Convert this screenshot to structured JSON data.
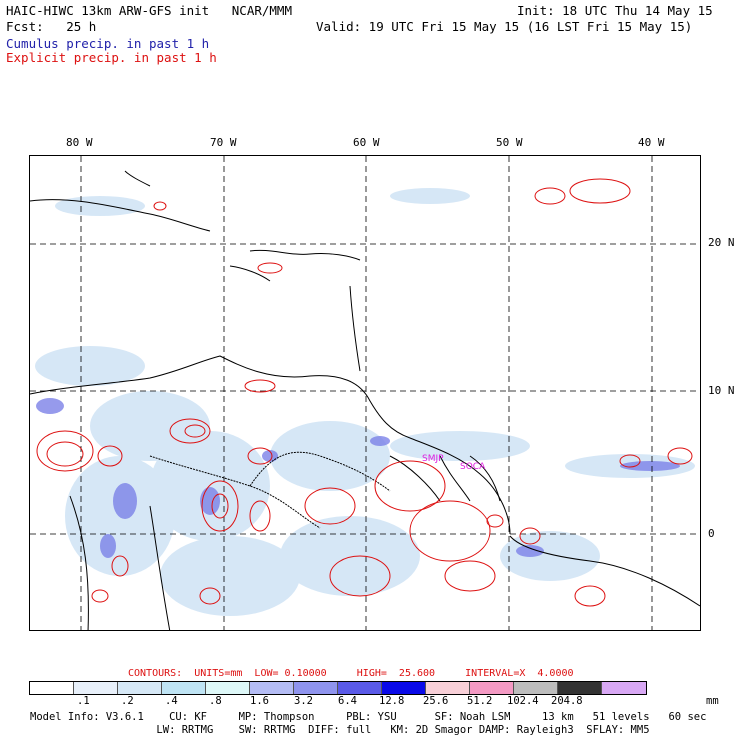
{
  "header": {
    "title_left": "HAIC-HIWC 13km ARW-GFS init   NCAR/MMM",
    "init": "Init: 18 UTC Thu 14 May 15",
    "fcst": "Fcst:   25 h",
    "valid": "Valid: 19 UTC Fri 15 May 15 (16 LST Fri 15 May 15)",
    "legend_cumulus": "Cumulus precip. in past 1 h",
    "legend_explicit": "Explicit precip. in past 1 h"
  },
  "map": {
    "lon_labels": [
      "80 W",
      "70 W",
      "60 W",
      "50 W",
      "40 W"
    ],
    "lat_labels": [
      "20 N",
      "10 N",
      "0"
    ],
    "stations": [
      "SMJP",
      "SOCA"
    ]
  },
  "contours": {
    "text": "CONTOURS:  UNITS=mm  LOW= 0.10000     HIGH=  25.600     INTERVAL=X  4.0000"
  },
  "colorbar": {
    "colors": [
      "#ffffff",
      "#e8f0fa",
      "#d6e8f6",
      "#bfe4f4",
      "#def8f8",
      "#b4bcf4",
      "#8f94ee",
      "#5a5ae8",
      "#0a0ae8",
      "#f8d0d8",
      "#f49ac4",
      "#bdbdbd",
      "#333333",
      "#d8a8f4"
    ],
    "ticks": [
      ".1",
      ".2",
      ".4",
      ".8",
      "1.6",
      "3.2",
      "6.4",
      "12.8",
      "25.6",
      "51.2",
      "102.4",
      "204.8"
    ],
    "units": "mm"
  },
  "footer": {
    "line1": "Model Info: V3.6.1    CU: KF     MP: Thompson     PBL: YSU      SF: Noah LSM     13 km   51 levels   60 sec",
    "line2": "                    LW: RRTMG    SW: RRTMG  DIFF: full   KM: 2D Smagor DAMP: Rayleigh3  SFLAY: MM5"
  }
}
